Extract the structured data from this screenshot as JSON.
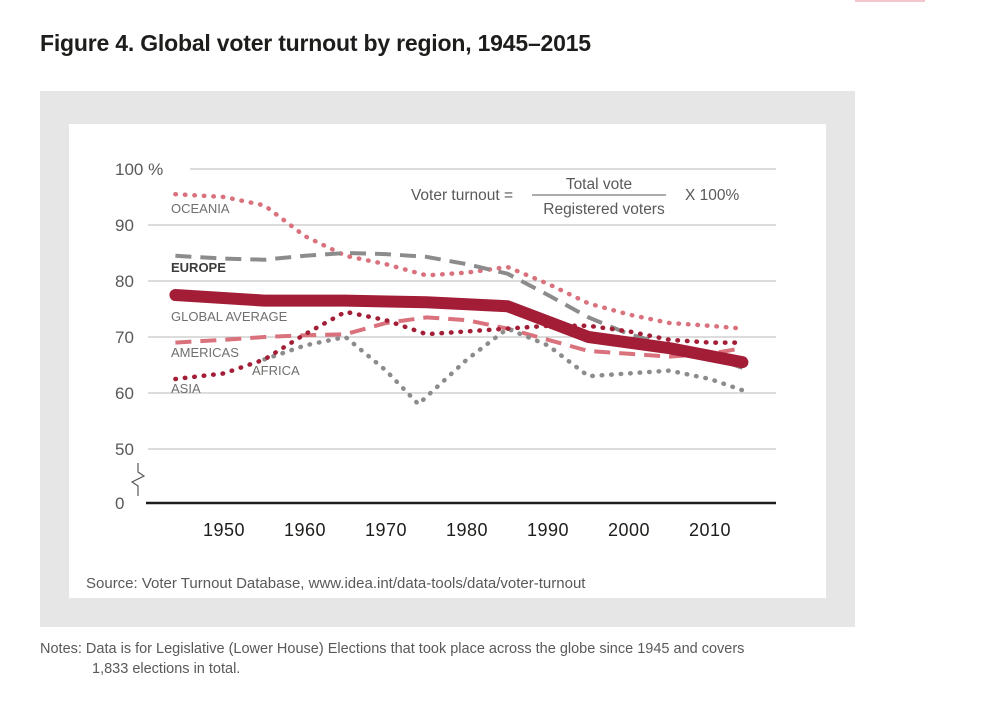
{
  "figure_title": "Figure 4. Global voter turnout by region, 1945–2015",
  "formula": {
    "lhs": "Voter turnout =",
    "numerator": "Total vote",
    "denominator": "Registered voters",
    "multiplier": "X 100%"
  },
  "source": "Source: Voter Turnout Database, www.idea.int/data-tools/data/voter-turnout",
  "notes": {
    "line1": "Notes: Data is for Legislative (Lower House) Elections that took place across the globe since 1945 and covers",
    "line2": "1,833 elections in total."
  },
  "chart_data": {
    "type": "line",
    "title": "Figure 4. Global voter turnout by region, 1945–2015",
    "xlabel": "",
    "ylabel": "",
    "y_unit_label": "100 %",
    "ylim": [
      0,
      100
    ],
    "y_axis_break": [
      0,
      50
    ],
    "xlim": [
      1943,
      2015
    ],
    "x_ticks": [
      1950,
      1960,
      1970,
      1980,
      1990,
      2000,
      2010
    ],
    "y_ticks": [
      0,
      50,
      60,
      70,
      80,
      90,
      100
    ],
    "grid": "horizontal",
    "legend": "inline labels",
    "colors": {
      "dark_red": "#a31d36",
      "pink": "#d9727d",
      "gray": "#8c8c8c"
    },
    "series": [
      {
        "name": "OCEANIA",
        "style": "dotted",
        "color": "#d9727d",
        "x": [
          1944,
          1950,
          1955,
          1960,
          1965,
          1970,
          1975,
          1980,
          1985,
          1990,
          1995,
          2000,
          2005,
          2010,
          2014
        ],
        "y": [
          95.5,
          95,
          93.5,
          88,
          84.5,
          83,
          81,
          81.5,
          82.5,
          79.5,
          76,
          74,
          72.5,
          72,
          71.5
        ]
      },
      {
        "name": "EUROPE",
        "style": "dashed",
        "color": "#8c8c8c",
        "x": [
          1944,
          1950,
          1955,
          1960,
          1965,
          1970,
          1975,
          1980,
          1985,
          1990,
          1995,
          2000,
          2005,
          2010,
          2014
        ],
        "y": [
          84.5,
          84,
          83.8,
          84.5,
          85,
          84.8,
          84.3,
          83,
          81.3,
          77.5,
          73.5,
          70.5,
          68.5,
          66.5,
          64.5
        ]
      },
      {
        "name": "GLOBAL AVERAGE",
        "style": "solid",
        "color": "#a31d36",
        "x": [
          1944,
          1955,
          1965,
          1975,
          1985,
          1995,
          2005,
          2014
        ],
        "y": [
          77.5,
          76.5,
          76.5,
          76.2,
          75.5,
          70,
          68,
          65.5
        ]
      },
      {
        "name": "AMERICAS",
        "style": "dashed",
        "color": "#d9727d",
        "x": [
          1944,
          1950,
          1955,
          1960,
          1965,
          1970,
          1975,
          1980,
          1985,
          1990,
          1995,
          2000,
          2005,
          2010,
          2014
        ],
        "y": [
          69,
          69.5,
          70,
          70.3,
          70.5,
          72.5,
          73.5,
          73,
          71.5,
          69.5,
          67.5,
          67,
          66.5,
          67,
          68
        ]
      },
      {
        "name": "AFRICA",
        "style": "dotted",
        "color": "#8c8c8c",
        "x": [
          1955,
          1960,
          1965,
          1970,
          1974,
          1980,
          1985,
          1990,
          1995,
          2000,
          2005,
          2010,
          2014
        ],
        "y": [
          66,
          68.5,
          70,
          64,
          58,
          66,
          71.5,
          68.5,
          63,
          63.5,
          64,
          62.5,
          60.5
        ]
      },
      {
        "name": "ASIA",
        "style": "dotted",
        "color": "#a31d36",
        "x": [
          1944,
          1950,
          1955,
          1960,
          1965,
          1970,
          1975,
          1980,
          1985,
          1990,
          1995,
          2000,
          2005,
          2010,
          2014
        ],
        "y": [
          62.5,
          63.5,
          66,
          70.5,
          74.5,
          73,
          70.5,
          71,
          71.5,
          72,
          72,
          71,
          69.5,
          69,
          69
        ]
      }
    ]
  }
}
